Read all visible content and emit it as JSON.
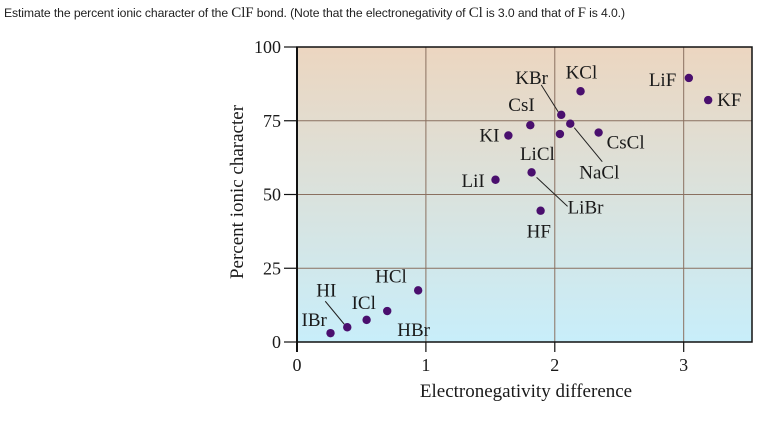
{
  "question": {
    "part1": "Estimate the percent ionic character of the ",
    "bond": "ClF",
    "part2": " bond. (Note that the electronegativity of ",
    "cl": "Cl",
    "part3": " is 3.0 and that of ",
    "f": "F",
    "part4": " is 4.0.)"
  },
  "cutoff_text": "Estimate the percent ionic character of the ClF bond.",
  "chart_data": {
    "type": "scatter",
    "title": "",
    "xlabel": "Electronegativity difference",
    "ylabel": "Percent ionic character",
    "xlim": [
      0,
      3.53
    ],
    "ylim": [
      0,
      100
    ],
    "xticks": [
      0,
      1,
      2,
      3
    ],
    "yticks": [
      0,
      25,
      50,
      75,
      100
    ],
    "grid": true,
    "point_color": "#4a0f6e",
    "background_gradient": {
      "top": "#ecd6c0",
      "bottom": "#c8eefa"
    },
    "points": [
      {
        "label": "IBr",
        "x": 0.26,
        "y": 3
      },
      {
        "label": "HI",
        "x": 0.39,
        "y": 5
      },
      {
        "label": "ICl",
        "x": 0.54,
        "y": 7.5
      },
      {
        "label": "HBr",
        "x": 0.7,
        "y": 10.5
      },
      {
        "label": "HCl",
        "x": 0.94,
        "y": 17.5
      },
      {
        "label": "LiI",
        "x": 1.54,
        "y": 55
      },
      {
        "label": "KI",
        "x": 1.64,
        "y": 70
      },
      {
        "label": "CsI",
        "x": 1.81,
        "y": 73.5
      },
      {
        "label": "LiBr",
        "x": 1.82,
        "y": 57.5
      },
      {
        "label": "HF",
        "x": 1.89,
        "y": 44.5
      },
      {
        "label": "LiCl",
        "x": 2.04,
        "y": 70.5
      },
      {
        "label": "KBr",
        "x": 2.05,
        "y": 77
      },
      {
        "label": "NaCl",
        "x": 2.12,
        "y": 74
      },
      {
        "label": "KCl",
        "x": 2.2,
        "y": 85
      },
      {
        "label": "CsCl",
        "x": 2.34,
        "y": 71
      },
      {
        "label": "LiF",
        "x": 3.04,
        "y": 89.5
      },
      {
        "label": "KF",
        "x": 3.19,
        "y": 82
      }
    ]
  }
}
